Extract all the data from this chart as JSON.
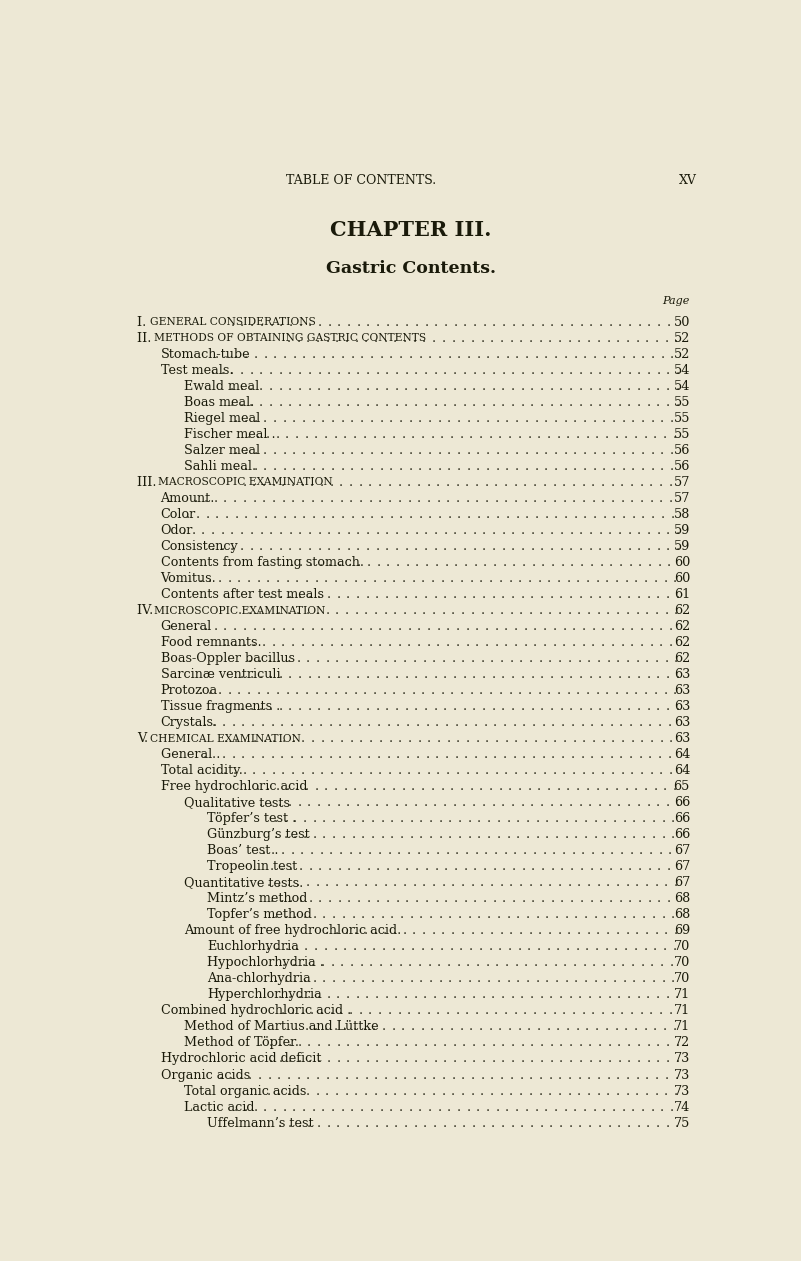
{
  "bg_color": "#ede8d5",
  "text_color": "#1a1a0a",
  "header_top": "TABLE OF CONTENTS.",
  "header_top_right": "XV",
  "chapter_title": "CHAPTER III.",
  "subtitle": "Gastric Contents.",
  "page_label": "Page",
  "entries": [
    {
      "indent": 0,
      "text": "I. General Considerations",
      "page": "50",
      "style": "smallcaps"
    },
    {
      "indent": 0,
      "text": "II. Methods of Obtaining Gastric Contents",
      "page": "52",
      "style": "smallcaps"
    },
    {
      "indent": 1,
      "text": "Stomach-tube",
      "page": "52",
      "style": "normal"
    },
    {
      "indent": 1,
      "text": "Test meals.",
      "page": "54",
      "style": "normal"
    },
    {
      "indent": 2,
      "text": "Ewald meal",
      "page": "54",
      "style": "normal"
    },
    {
      "indent": 2,
      "text": "Boas meal.",
      "page": "55",
      "style": "normal"
    },
    {
      "indent": 2,
      "text": "Riegel meal",
      "page": "55",
      "style": "normal"
    },
    {
      "indent": 2,
      "text": "Fischer meal .",
      "page": "55",
      "style": "normal"
    },
    {
      "indent": 2,
      "text": "Salzer meal",
      "page": "56",
      "style": "normal"
    },
    {
      "indent": 2,
      "text": "Sahli meal.",
      "page": "56",
      "style": "normal"
    },
    {
      "indent": 0,
      "text": "III. Macroscopic Examination",
      "page": "57",
      "style": "smallcaps"
    },
    {
      "indent": 1,
      "text": "Amount.",
      "page": "57",
      "style": "normal"
    },
    {
      "indent": 1,
      "text": "Color",
      "page": "58",
      "style": "normal"
    },
    {
      "indent": 1,
      "text": "Odor",
      "page": "59",
      "style": "normal"
    },
    {
      "indent": 1,
      "text": "Consistency",
      "page": "59",
      "style": "normal"
    },
    {
      "indent": 1,
      "text": "Contents from fasting stomach.",
      "page": "60",
      "style": "normal"
    },
    {
      "indent": 1,
      "text": "Vomitus.",
      "page": "60",
      "style": "normal"
    },
    {
      "indent": 1,
      "text": "Contents after test meals",
      "page": "61",
      "style": "normal"
    },
    {
      "indent": 0,
      "text": "IV. Microscopic Examination",
      "page": "62",
      "style": "smallcaps"
    },
    {
      "indent": 1,
      "text": "General",
      "page": "62",
      "style": "normal"
    },
    {
      "indent": 1,
      "text": "Food remnants.",
      "page": "62",
      "style": "normal"
    },
    {
      "indent": 1,
      "text": "Boas-Oppler bacillus",
      "page": "62",
      "style": "normal"
    },
    {
      "indent": 1,
      "text": "Sarcinæ ventriculi",
      "page": "63",
      "style": "normal"
    },
    {
      "indent": 1,
      "text": "Protozoa",
      "page": "63",
      "style": "normal"
    },
    {
      "indent": 1,
      "text": "Tissue fragments .",
      "page": "63",
      "style": "normal"
    },
    {
      "indent": 1,
      "text": "Crystals.",
      "page": "63",
      "style": "normal"
    },
    {
      "indent": 0,
      "text": "V. Chemical Examination",
      "page": "63",
      "style": "smallcaps"
    },
    {
      "indent": 1,
      "text": "General .",
      "page": "64",
      "style": "normal"
    },
    {
      "indent": 1,
      "text": "Total acidity.",
      "page": "64",
      "style": "normal"
    },
    {
      "indent": 1,
      "text": "Free hydrochloric acid",
      "page": "65",
      "style": "normal"
    },
    {
      "indent": 2,
      "text": "Qualitative tests",
      "page": "66",
      "style": "normal"
    },
    {
      "indent": 3,
      "text": "Töpfer’s test .",
      "page": "66",
      "style": "normal"
    },
    {
      "indent": 3,
      "text": "Günzburg’s test",
      "page": "66",
      "style": "normal"
    },
    {
      "indent": 3,
      "text": "Boas’ test .",
      "page": "67",
      "style": "normal"
    },
    {
      "indent": 3,
      "text": "Tropeolin test",
      "page": "67",
      "style": "normal"
    },
    {
      "indent": 2,
      "text": "Quantitative tests.",
      "page": "67",
      "style": "normal"
    },
    {
      "indent": 3,
      "text": "Mintz’s method",
      "page": "68",
      "style": "normal"
    },
    {
      "indent": 3,
      "text": "Topfer’s method",
      "page": "68",
      "style": "normal"
    },
    {
      "indent": 2,
      "text": "Amount of free hydrochloric acid.",
      "page": "69",
      "style": "normal"
    },
    {
      "indent": 3,
      "text": "Euchlorhydria",
      "page": "70",
      "style": "normal"
    },
    {
      "indent": 3,
      "text": "Hypochlorhydria .",
      "page": "70",
      "style": "normal"
    },
    {
      "indent": 3,
      "text": "Ana-chlorhydria",
      "page": "70",
      "style": "normal"
    },
    {
      "indent": 3,
      "text": "Hyperchlorhydria",
      "page": "71",
      "style": "normal"
    },
    {
      "indent": 1,
      "text": "Combined hydrochloric acid .",
      "page": "71",
      "style": "normal"
    },
    {
      "indent": 2,
      "text": "Method of Martius and Lüttke",
      "page": "71",
      "style": "normal"
    },
    {
      "indent": 2,
      "text": "Method of Töpfer.",
      "page": "72",
      "style": "normal"
    },
    {
      "indent": 1,
      "text": "Hydrochloric acid deficit",
      "page": "73",
      "style": "normal"
    },
    {
      "indent": 1,
      "text": "Organic acids",
      "page": "73",
      "style": "normal"
    },
    {
      "indent": 2,
      "text": "Total organic acids",
      "page": "73",
      "style": "normal"
    },
    {
      "indent": 2,
      "text": "Lactic acid",
      "page": "74",
      "style": "normal"
    },
    {
      "indent": 3,
      "text": "Uffelmann’s test",
      "page": "75",
      "style": "normal"
    }
  ],
  "smallcaps_sections": {
    "I": {
      "prefix": "I.",
      "rest": " General Considerations"
    },
    "II": {
      "prefix": "II.",
      "rest": " Methods of Obtaining Gastric Contents"
    },
    "III": {
      "prefix": "III.",
      "rest": " Macroscopic Examination"
    },
    "IV": {
      "prefix": "IV.",
      "rest": " Microscopic Examination"
    },
    "V": {
      "prefix": "V.",
      "rest": " Chemical Examination"
    }
  }
}
